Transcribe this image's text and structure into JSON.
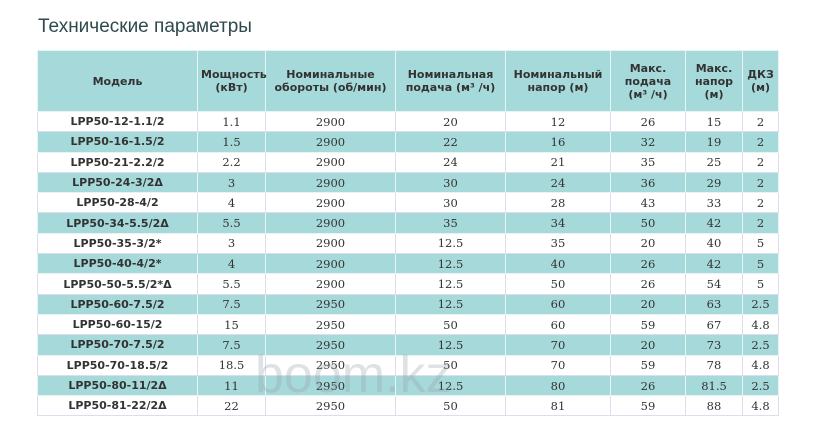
{
  "header": {
    "title": "Технические параметры"
  },
  "table": {
    "columns": [
      "Модель",
      "Мощность (кВт)",
      "Номинальные обороты (об/мин)",
      "Номинальная подача (м³ /ч)",
      "Номинальный напор (м)",
      "Макс. подача (м³ /ч)",
      "Макс. напор (м)",
      "ДКЗ (м)"
    ],
    "rows": [
      [
        "LPP50-12-1.1/2",
        "1.1",
        "2900",
        "20",
        "12",
        "26",
        "15",
        "2"
      ],
      [
        "LPP50-16-1.5/2",
        "1.5",
        "2900",
        "22",
        "16",
        "32",
        "19",
        "2"
      ],
      [
        "LPP50-21-2.2/2",
        "2.2",
        "2900",
        "24",
        "21",
        "35",
        "25",
        "2"
      ],
      [
        "LPP50-24-3/2Δ",
        "3",
        "2900",
        "30",
        "24",
        "36",
        "29",
        "2"
      ],
      [
        "LPP50-28-4/2",
        "4",
        "2900",
        "30",
        "28",
        "43",
        "33",
        "2"
      ],
      [
        "LPP50-34-5.5/2Δ",
        "5.5",
        "2900",
        "35",
        "34",
        "50",
        "42",
        "2"
      ],
      [
        "LPP50-35-3/2*",
        "3",
        "2900",
        "12.5",
        "35",
        "20",
        "40",
        "5"
      ],
      [
        "LPP50-40-4/2*",
        "4",
        "2900",
        "12.5",
        "40",
        "26",
        "42",
        "5"
      ],
      [
        "LPP50-50-5.5/2*Δ",
        "5.5",
        "2900",
        "12.5",
        "50",
        "26",
        "54",
        "5"
      ],
      [
        "LPP50-60-7.5/2",
        "7.5",
        "2950",
        "12.5",
        "60",
        "20",
        "63",
        "2.5"
      ],
      [
        "LPP50-60-15/2",
        "15",
        "2950",
        "50",
        "60",
        "59",
        "67",
        "4.8"
      ],
      [
        "LPP50-70-7.5/2",
        "7.5",
        "2950",
        "12.5",
        "70",
        "20",
        "73",
        "2.5"
      ],
      [
        "LPP50-70-18.5/2",
        "18.5",
        "2950",
        "50",
        "70",
        "59",
        "78",
        "4.8"
      ],
      [
        "LPP50-80-11/2Δ",
        "11",
        "2950",
        "12.5",
        "80",
        "26",
        "81.5",
        "2.5"
      ],
      [
        "LPP50-81-22/2Δ",
        "22",
        "2950",
        "50",
        "81",
        "59",
        "88",
        "4.8"
      ]
    ]
  },
  "watermark": "boom.kz"
}
